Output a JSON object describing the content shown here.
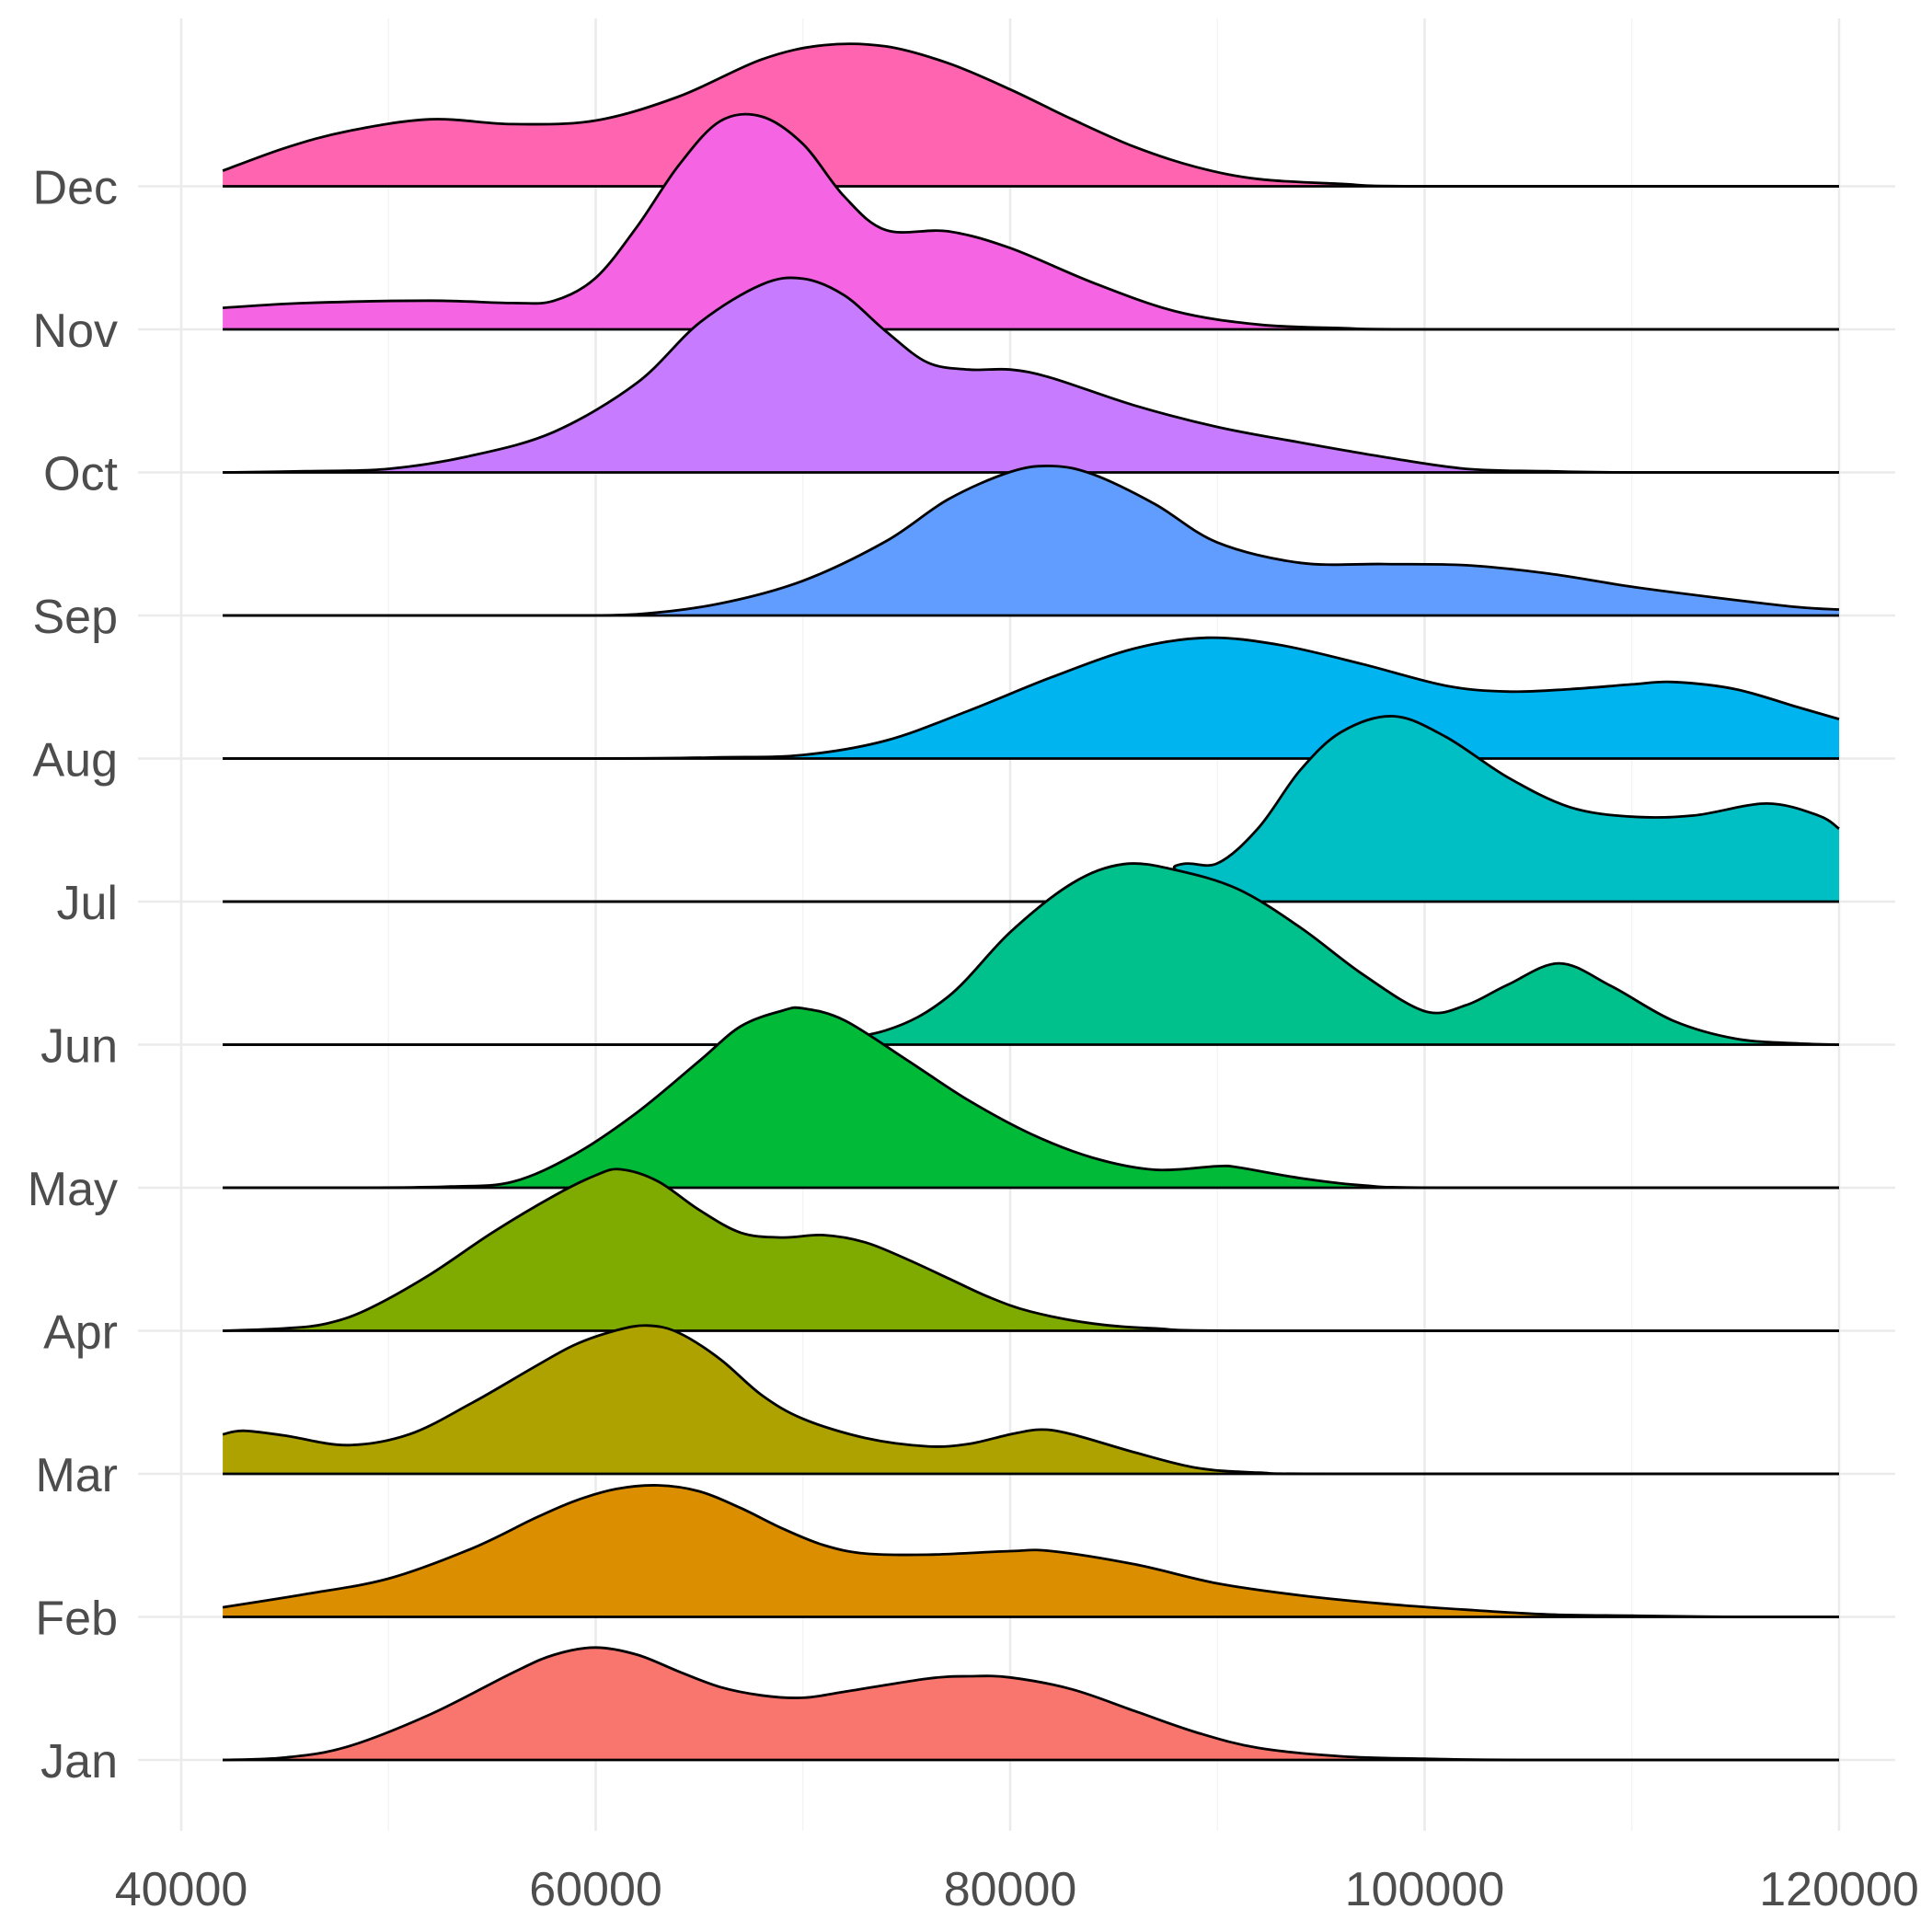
{
  "chart_data": {
    "type": "ridgeline",
    "title": "",
    "xlabel": "",
    "ylabel": "",
    "xlim": [
      40000,
      120000
    ],
    "x_ticks": [
      "40000",
      "60000",
      "80000",
      "100000",
      "120000"
    ],
    "x_minor_ticks": [
      50000,
      70000,
      90000,
      110000
    ],
    "grid": true,
    "legend": "none",
    "x_range": [
      42000,
      120000
    ],
    "series": [
      {
        "name": "Jan",
        "color": "#F8766D",
        "density": [
          [
            42000,
            0
          ],
          [
            45000,
            0.02
          ],
          [
            48000,
            0.11
          ],
          [
            52000,
            0.38
          ],
          [
            56000,
            0.73
          ],
          [
            58000,
            0.88
          ],
          [
            60000,
            0.94
          ],
          [
            62000,
            0.88
          ],
          [
            64000,
            0.74
          ],
          [
            66000,
            0.61
          ],
          [
            68000,
            0.54
          ],
          [
            70000,
            0.52
          ],
          [
            72000,
            0.57
          ],
          [
            76000,
            0.68
          ],
          [
            78000,
            0.7
          ],
          [
            80000,
            0.69
          ],
          [
            83000,
            0.59
          ],
          [
            86000,
            0.41
          ],
          [
            89000,
            0.23
          ],
          [
            92000,
            0.1
          ],
          [
            96000,
            0.03
          ],
          [
            100000,
            0.01
          ],
          [
            105000,
            0
          ],
          [
            120000,
            0
          ]
        ]
      },
      {
        "name": "Feb",
        "color": "#DB8E00",
        "density": [
          [
            42000,
            0.08
          ],
          [
            46000,
            0.19
          ],
          [
            50000,
            0.32
          ],
          [
            54000,
            0.57
          ],
          [
            57000,
            0.82
          ],
          [
            59000,
            0.97
          ],
          [
            61000,
            1.07
          ],
          [
            63000,
            1.1
          ],
          [
            65000,
            1.05
          ],
          [
            67000,
            0.91
          ],
          [
            69000,
            0.74
          ],
          [
            71000,
            0.6
          ],
          [
            73000,
            0.53
          ],
          [
            76000,
            0.52
          ],
          [
            80000,
            0.55
          ],
          [
            82000,
            0.55
          ],
          [
            86000,
            0.44
          ],
          [
            90000,
            0.28
          ],
          [
            94000,
            0.18
          ],
          [
            98000,
            0.11
          ],
          [
            102000,
            0.06
          ],
          [
            106000,
            0.02
          ],
          [
            110000,
            0.01
          ],
          [
            115000,
            0
          ],
          [
            120000,
            0
          ]
        ]
      },
      {
        "name": "Mar",
        "color": "#AEA200",
        "density": [
          [
            42000,
            0.33
          ],
          [
            43000,
            0.36
          ],
          [
            45000,
            0.32
          ],
          [
            48000,
            0.24
          ],
          [
            51000,
            0.33
          ],
          [
            54000,
            0.59
          ],
          [
            57000,
            0.89
          ],
          [
            59000,
            1.08
          ],
          [
            61000,
            1.2
          ],
          [
            62500,
            1.24
          ],
          [
            64000,
            1.18
          ],
          [
            66000,
            0.96
          ],
          [
            68000,
            0.66
          ],
          [
            70000,
            0.46
          ],
          [
            73000,
            0.3
          ],
          [
            76000,
            0.23
          ],
          [
            78000,
            0.25
          ],
          [
            80000,
            0.33
          ],
          [
            81500,
            0.37
          ],
          [
            83000,
            0.33
          ],
          [
            86000,
            0.18
          ],
          [
            89000,
            0.05
          ],
          [
            92000,
            0.01
          ],
          [
            96000,
            0
          ],
          [
            120000,
            0
          ]
        ]
      },
      {
        "name": "Apr",
        "color": "#7FAA00",
        "density": [
          [
            42000,
            0
          ],
          [
            45000,
            0.02
          ],
          [
            47000,
            0.06
          ],
          [
            49000,
            0.18
          ],
          [
            52000,
            0.47
          ],
          [
            55000,
            0.82
          ],
          [
            58000,
            1.13
          ],
          [
            60000,
            1.3
          ],
          [
            61200,
            1.35
          ],
          [
            63000,
            1.25
          ],
          [
            65000,
            1.01
          ],
          [
            67000,
            0.82
          ],
          [
            69000,
            0.78
          ],
          [
            71000,
            0.8
          ],
          [
            73000,
            0.74
          ],
          [
            75000,
            0.6
          ],
          [
            77000,
            0.44
          ],
          [
            79000,
            0.28
          ],
          [
            81000,
            0.16
          ],
          [
            84000,
            0.06
          ],
          [
            87000,
            0.02
          ],
          [
            92000,
            0
          ],
          [
            120000,
            0
          ]
        ]
      },
      {
        "name": "May",
        "color": "#00BA38",
        "density": [
          [
            42000,
            0
          ],
          [
            49000,
            0
          ],
          [
            53000,
            0.01
          ],
          [
            56000,
            0.05
          ],
          [
            59000,
            0.28
          ],
          [
            62000,
            0.63
          ],
          [
            65000,
            1.06
          ],
          [
            67000,
            1.35
          ],
          [
            69000,
            1.48
          ],
          [
            70000,
            1.5
          ],
          [
            72000,
            1.4
          ],
          [
            75000,
            1.07
          ],
          [
            78000,
            0.73
          ],
          [
            81000,
            0.45
          ],
          [
            84000,
            0.25
          ],
          [
            87000,
            0.15
          ],
          [
            90000,
            0.18
          ],
          [
            91000,
            0.17
          ],
          [
            94000,
            0.08
          ],
          [
            97000,
            0.02
          ],
          [
            101000,
            0
          ],
          [
            120000,
            0
          ]
        ]
      },
      {
        "name": "Jun",
        "color": "#00C08B",
        "density": [
          [
            42000,
            0
          ],
          [
            66000,
            0
          ],
          [
            70000,
            0.02
          ],
          [
            74000,
            0.12
          ],
          [
            77000,
            0.4
          ],
          [
            80000,
            0.94
          ],
          [
            83000,
            1.35
          ],
          [
            85500,
            1.51
          ],
          [
            88000,
            1.46
          ],
          [
            91000,
            1.3
          ],
          [
            94000,
            0.98
          ],
          [
            97000,
            0.59
          ],
          [
            100000,
            0.28
          ],
          [
            102000,
            0.33
          ],
          [
            104000,
            0.5
          ],
          [
            106500,
            0.68
          ],
          [
            109000,
            0.49
          ],
          [
            112000,
            0.2
          ],
          [
            115000,
            0.05
          ],
          [
            118000,
            0.01
          ],
          [
            120000,
            0
          ]
        ]
      },
      {
        "name": "Jul",
        "color": "#00BFC4",
        "density": [
          [
            42000,
            0
          ],
          [
            85000,
            0
          ],
          [
            88000,
            0.3
          ],
          [
            90000,
            0.32
          ],
          [
            92000,
            0.62
          ],
          [
            94000,
            1.1
          ],
          [
            96000,
            1.42
          ],
          [
            98500,
            1.55
          ],
          [
            101000,
            1.38
          ],
          [
            104000,
            1.04
          ],
          [
            107000,
            0.79
          ],
          [
            110000,
            0.71
          ],
          [
            113000,
            0.72
          ],
          [
            116500,
            0.82
          ],
          [
            119000,
            0.72
          ],
          [
            120000,
            0.61
          ]
        ]
      },
      {
        "name": "Aug",
        "color": "#00B4EF",
        "density": [
          [
            42000,
            0
          ],
          [
            60000,
            0
          ],
          [
            66000,
            0.01
          ],
          [
            70000,
            0.03
          ],
          [
            74000,
            0.15
          ],
          [
            78000,
            0.4
          ],
          [
            82000,
            0.68
          ],
          [
            86000,
            0.92
          ],
          [
            89500,
            1.01
          ],
          [
            93000,
            0.95
          ],
          [
            97000,
            0.79
          ],
          [
            101000,
            0.61
          ],
          [
            104000,
            0.56
          ],
          [
            107000,
            0.58
          ],
          [
            110000,
            0.62
          ],
          [
            112000,
            0.64
          ],
          [
            115000,
            0.58
          ],
          [
            118000,
            0.43
          ],
          [
            120000,
            0.33
          ]
        ]
      },
      {
        "name": "Sep",
        "color": "#619CFF",
        "density": [
          [
            42000,
            0
          ],
          [
            58000,
            0
          ],
          [
            62000,
            0.01
          ],
          [
            66000,
            0.1
          ],
          [
            70000,
            0.29
          ],
          [
            74000,
            0.62
          ],
          [
            77000,
            0.97
          ],
          [
            80000,
            1.2
          ],
          [
            82000,
            1.25
          ],
          [
            84000,
            1.18
          ],
          [
            87000,
            0.93
          ],
          [
            90000,
            0.61
          ],
          [
            94000,
            0.44
          ],
          [
            98000,
            0.43
          ],
          [
            102000,
            0.42
          ],
          [
            106000,
            0.35
          ],
          [
            110000,
            0.24
          ],
          [
            114000,
            0.15
          ],
          [
            118000,
            0.07
          ],
          [
            120000,
            0.05
          ]
        ]
      },
      {
        "name": "Oct",
        "color": "#C77CFF",
        "density": [
          [
            42000,
            0
          ],
          [
            46000,
            0.01
          ],
          [
            50000,
            0.03
          ],
          [
            54000,
            0.14
          ],
          [
            58000,
            0.34
          ],
          [
            62000,
            0.75
          ],
          [
            65000,
            1.25
          ],
          [
            68000,
            1.57
          ],
          [
            70000,
            1.62
          ],
          [
            72000,
            1.48
          ],
          [
            74000,
            1.18
          ],
          [
            76000,
            0.92
          ],
          [
            78000,
            0.86
          ],
          [
            80000,
            0.86
          ],
          [
            82000,
            0.79
          ],
          [
            86000,
            0.56
          ],
          [
            90000,
            0.38
          ],
          [
            94000,
            0.25
          ],
          [
            98000,
            0.13
          ],
          [
            102000,
            0.03
          ],
          [
            106000,
            0.01
          ],
          [
            110000,
            0
          ],
          [
            120000,
            0
          ]
        ]
      },
      {
        "name": "Nov",
        "color": "#F564E3",
        "density": [
          [
            42000,
            0.18
          ],
          [
            46000,
            0.22
          ],
          [
            52000,
            0.24
          ],
          [
            56000,
            0.22
          ],
          [
            58000,
            0.24
          ],
          [
            60000,
            0.43
          ],
          [
            62000,
            0.86
          ],
          [
            64000,
            1.37
          ],
          [
            66000,
            1.74
          ],
          [
            68000,
            1.78
          ],
          [
            70000,
            1.55
          ],
          [
            72000,
            1.11
          ],
          [
            74000,
            0.83
          ],
          [
            77000,
            0.82
          ],
          [
            80000,
            0.68
          ],
          [
            84000,
            0.39
          ],
          [
            88000,
            0.15
          ],
          [
            92000,
            0.04
          ],
          [
            96000,
            0.01
          ],
          [
            100000,
            0
          ],
          [
            120000,
            0
          ]
        ]
      },
      {
        "name": "Dec",
        "color": "#FF64B0",
        "density": [
          [
            42000,
            0.13
          ],
          [
            45000,
            0.32
          ],
          [
            48000,
            0.46
          ],
          [
            52000,
            0.56
          ],
          [
            56000,
            0.52
          ],
          [
            60000,
            0.55
          ],
          [
            64000,
            0.75
          ],
          [
            68000,
            1.06
          ],
          [
            71000,
            1.18
          ],
          [
            74000,
            1.17
          ],
          [
            77000,
            1.03
          ],
          [
            80000,
            0.81
          ],
          [
            83000,
            0.56
          ],
          [
            86000,
            0.33
          ],
          [
            89000,
            0.16
          ],
          [
            92000,
            0.06
          ],
          [
            96000,
            0.02
          ],
          [
            100000,
            0
          ],
          [
            120000,
            0
          ]
        ]
      }
    ]
  }
}
